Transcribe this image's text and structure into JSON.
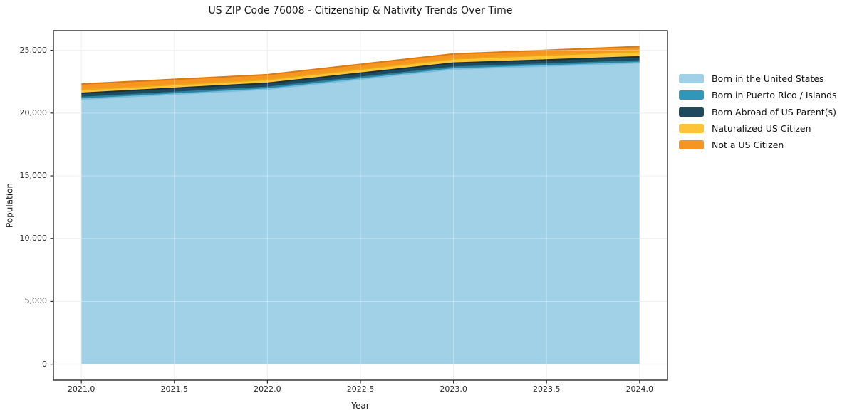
{
  "chart_data": {
    "type": "area",
    "stacked": true,
    "title": "US ZIP Code 76008 - Citizenship & Nativity Trends Over Time",
    "xlabel": "Year",
    "ylabel": "Population",
    "x": [
      2021,
      2022,
      2023,
      2024
    ],
    "series": [
      {
        "name": "Born in the United States",
        "values": [
          21100,
          21900,
          23500,
          24000
        ],
        "color": "#a1d1e6",
        "edge_color": "#7cbcdc"
      },
      {
        "name": "Born in Puerto Rico / Islands",
        "values": [
          150,
          150,
          150,
          150
        ],
        "color": "#2f97b8",
        "edge_color": "#27839f"
      },
      {
        "name": "Born Abroad of US Parent(s)",
        "values": [
          330,
          330,
          330,
          330
        ],
        "color": "#1f4a5e",
        "edge_color": "#14323f"
      },
      {
        "name": "Naturalized US Citizen",
        "values": [
          280,
          280,
          330,
          420
        ],
        "color": "#fdc437",
        "edge_color": "#eca616"
      },
      {
        "name": "Not a US Citizen",
        "values": [
          450,
          400,
          400,
          400
        ],
        "color": "#f79522",
        "edge_color": "#dd7a0e"
      }
    ],
    "xlim": [
      2020.85,
      2024.15
    ],
    "ylim": [
      -1265,
      26565
    ],
    "xticks": {
      "values": [
        2021.0,
        2021.5,
        2022.0,
        2022.5,
        2023.0,
        2023.5,
        2024.0
      ],
      "labels": [
        "2021.0",
        "2021.5",
        "2022.0",
        "2022.5",
        "2023.0",
        "2023.5",
        "2024.0"
      ]
    },
    "yticks": {
      "values": [
        0,
        5000,
        10000,
        15000,
        20000,
        25000
      ],
      "labels": [
        "0",
        "5,000",
        "10,000",
        "15,000",
        "20,000",
        "25,000"
      ]
    },
    "grid": true,
    "legend_position": "right-outside",
    "style": {
      "grid_color": "#e8e8ec",
      "grid_overlay_color": "rgba(255,255,255,0.35)",
      "spine_color": "#2b2b2b",
      "tick_color": "#2b2b2b"
    }
  }
}
